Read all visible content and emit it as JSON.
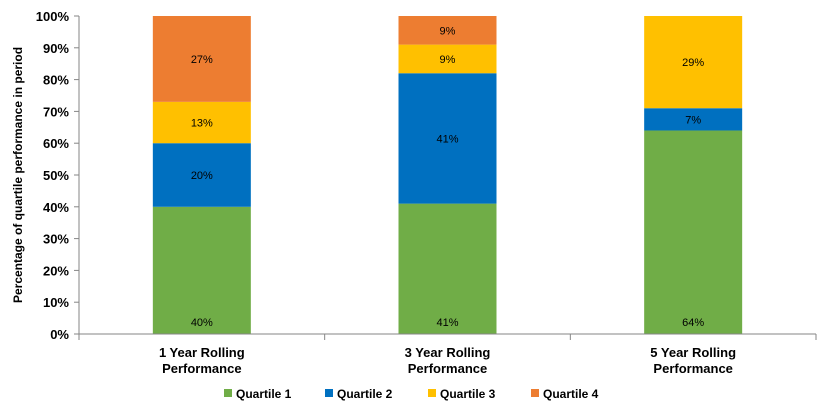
{
  "chart_data": {
    "type": "bar",
    "stacked": true,
    "categories": [
      [
        "1 Year Rolling",
        "Performance"
      ],
      [
        "3 Year Rolling",
        "Performance"
      ],
      [
        "5 Year Rolling",
        "Performance"
      ]
    ],
    "ylabel": "Percentage of quartile performance in period",
    "ylim": [
      0,
      100
    ],
    "yticks": [
      "0%",
      "10%",
      "20%",
      "30%",
      "40%",
      "50%",
      "60%",
      "70%",
      "80%",
      "90%",
      "100%"
    ],
    "grid": false,
    "legend": "bottom",
    "series": [
      {
        "name": "Quartile 1",
        "color": "#70AD47",
        "values": [
          40,
          41,
          64
        ],
        "labels": [
          "40%",
          "41%",
          "64%"
        ]
      },
      {
        "name": "Quartile 2",
        "color": "#0070C0",
        "values": [
          20,
          41,
          7
        ],
        "labels": [
          "20%",
          "41%",
          "7%"
        ]
      },
      {
        "name": "Quartile 3",
        "color": "#FFC000",
        "values": [
          13,
          9,
          29
        ],
        "labels": [
          "13%",
          "9%",
          "29%"
        ]
      },
      {
        "name": "Quartile 4",
        "color": "#ED7D31",
        "values": [
          27,
          9,
          0
        ],
        "labels": [
          "27%",
          "9%",
          ""
        ]
      }
    ]
  }
}
